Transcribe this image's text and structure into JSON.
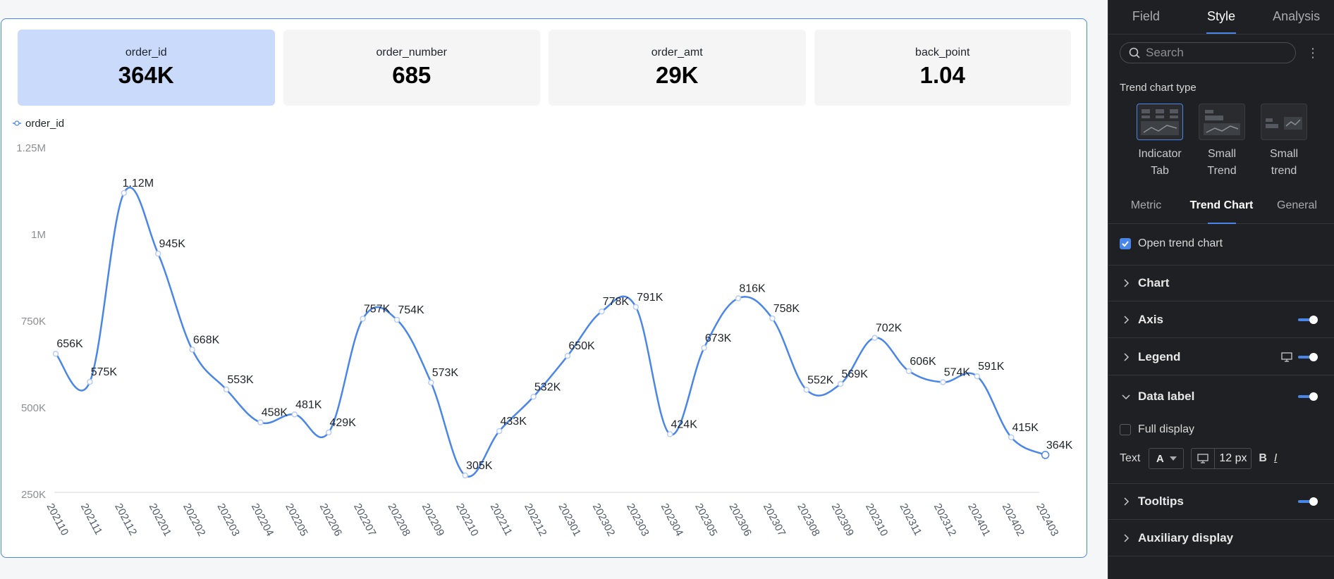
{
  "kpis": [
    {
      "label": "order_id",
      "value": "364K",
      "active": true
    },
    {
      "label": "order_number",
      "value": "685",
      "active": false
    },
    {
      "label": "order_amt",
      "value": "29K",
      "active": false
    },
    {
      "label": "back_point",
      "value": "1.04",
      "active": false
    }
  ],
  "chart_data": {
    "type": "line",
    "legend": "order_id",
    "legend_position": "top-left",
    "series": [
      {
        "name": "order_id",
        "color": "#4a86e8",
        "values": [
          656,
          575,
          1120,
          945,
          668,
          553,
          458,
          481,
          429,
          757,
          754,
          573,
          305,
          433,
          532,
          650,
          778,
          791,
          424,
          673,
          816,
          758,
          552,
          569,
          702,
          606,
          574,
          591,
          415,
          364
        ]
      }
    ],
    "categories": [
      "202110",
      "202111",
      "202112",
      "202201",
      "202202",
      "202203",
      "202204",
      "202205",
      "202206",
      "202207",
      "202208",
      "202209",
      "202210",
      "202211",
      "202212",
      "202301",
      "202302",
      "202303",
      "202304",
      "202305",
      "202306",
      "202307",
      "202308",
      "202309",
      "202310",
      "202311",
      "202312",
      "202401",
      "202402",
      "202403"
    ],
    "data_labels": [
      "656K",
      "575K",
      "1.12M",
      "945K",
      "668K",
      "553K",
      "458K",
      "481K",
      "429K",
      "757K",
      "754K",
      "573K",
      "305K",
      "433K",
      "532K",
      "650K",
      "778K",
      "791K",
      "424K",
      "673K",
      "816K",
      "758K",
      "552K",
      "569K",
      "702K",
      "606K",
      "574K",
      "591K",
      "415K",
      "364K"
    ],
    "y_ticks": [
      {
        "value": 1250,
        "label": "1.25M"
      },
      {
        "value": 1000,
        "label": "1M"
      },
      {
        "value": 750,
        "label": "750K"
      },
      {
        "value": 500,
        "label": "500K"
      },
      {
        "value": 250,
        "label": "250K"
      }
    ],
    "ylim": [
      250,
      1250
    ],
    "grid": false
  },
  "panel": {
    "tabs": [
      "Field",
      "Style",
      "Analysis"
    ],
    "active_tab": "Style",
    "search_placeholder": "Search",
    "trend_chart_type_title": "Trend chart type",
    "trend_types": [
      {
        "line1": "Indicator",
        "line2": "Tab",
        "active": true
      },
      {
        "line1": "Small",
        "line2": "Trend",
        "active": false
      },
      {
        "line1": "Small",
        "line2": "trend",
        "active": false
      }
    ],
    "sub_tabs": [
      "Metric",
      "Trend Chart",
      "General"
    ],
    "active_sub_tab": "Trend Chart",
    "open_trend_chart": "Open trend chart",
    "sections": {
      "chart": "Chart",
      "axis": "Axis",
      "legend": "Legend",
      "data_label": "Data label",
      "tooltips": "Tooltips",
      "auxiliary": "Auxiliary display"
    },
    "full_display": "Full display",
    "text_label": "Text",
    "color_glyph": "A",
    "font_size": "12 px",
    "bold": "B",
    "italic": "I",
    "accent": "#4a86e8"
  }
}
